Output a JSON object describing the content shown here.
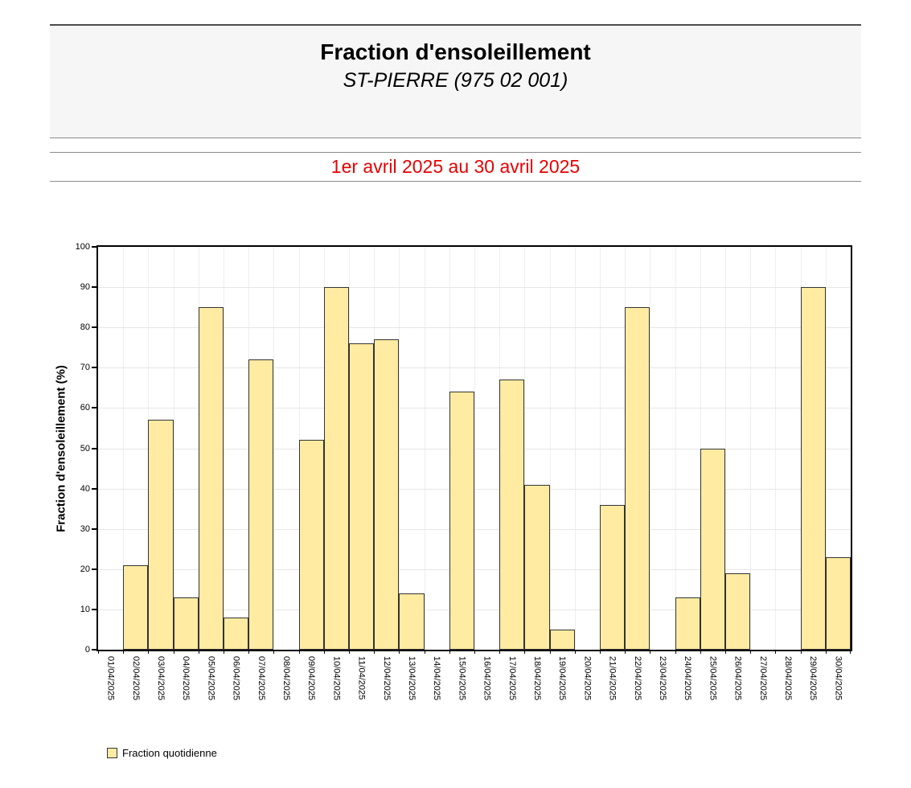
{
  "header": {
    "title": "Fraction d'ensoleillement",
    "subtitle": "ST-PIERRE (975 02 001)"
  },
  "period": {
    "label": "1er avril 2025 au 30 avril 2025",
    "color": "#e60000"
  },
  "legend": {
    "label": "Fraction quotidienne"
  },
  "chart_data": {
    "type": "bar",
    "title": "Fraction d'ensoleillement",
    "subtitle": "ST-PIERRE (975 02 001)",
    "period": "1er avril 2025 au 30 avril 2025",
    "xlabel": "",
    "ylabel": "Fraction d'ensoleillement (%)",
    "ylim": [
      0,
      100
    ],
    "ytick_step": 10,
    "grid": true,
    "legend_position": "bottom-left",
    "series_name": "Fraction quotidienne",
    "bar_fill": "#ffeba2",
    "bar_border": "#333333",
    "categories": [
      "01/04/2025",
      "02/04/2025",
      "03/04/2025",
      "04/04/2025",
      "05/04/2025",
      "06/04/2025",
      "07/04/2025",
      "08/04/2025",
      "09/04/2025",
      "10/04/2025",
      "11/04/2025",
      "12/04/2025",
      "13/04/2025",
      "14/04/2025",
      "15/04/2025",
      "16/04/2025",
      "17/04/2025",
      "18/04/2025",
      "19/04/2025",
      "20/04/2025",
      "21/04/2025",
      "22/04/2025",
      "23/04/2025",
      "24/04/2025",
      "25/04/2025",
      "26/04/2025",
      "27/04/2025",
      "28/04/2025",
      "29/04/2025",
      "30/04/2025"
    ],
    "values": [
      0,
      21,
      57,
      13,
      85,
      8,
      72,
      0,
      52,
      90,
      76,
      77,
      14,
      0,
      64,
      0,
      67,
      41,
      5,
      0,
      36,
      85,
      0,
      13,
      50,
      19,
      0,
      0,
      90,
      23
    ]
  }
}
